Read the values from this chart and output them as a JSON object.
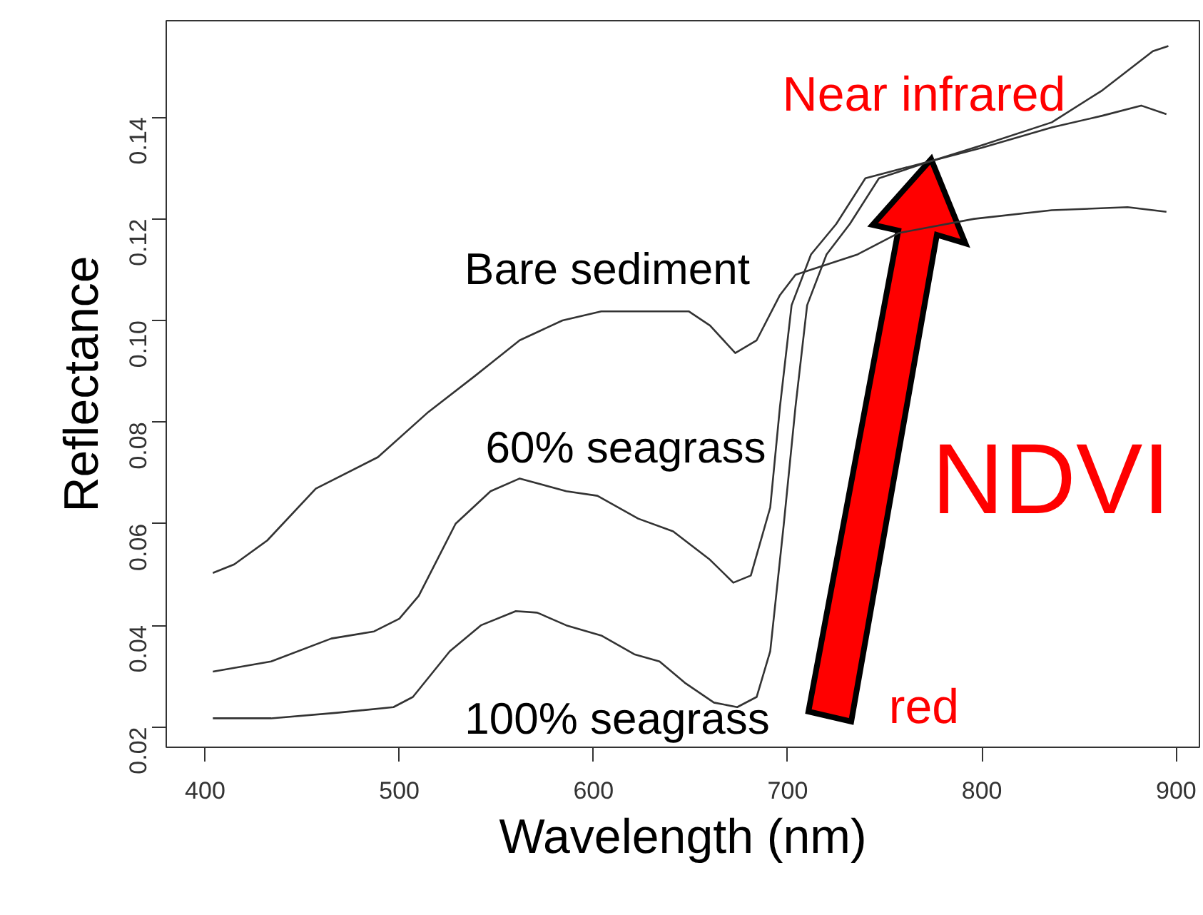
{
  "chart_data": {
    "type": "line",
    "xlabel": "Wavelength (nm)",
    "ylabel": "Reflectance",
    "xlim": [
      380,
      912
    ],
    "ylim": [
      0.016,
      0.159
    ],
    "xticks": [
      400,
      500,
      600,
      700,
      800,
      900
    ],
    "yticks": [
      {
        "value": 0.02,
        "label": "0.02"
      },
      {
        "value": 0.04,
        "label": "0.04"
      },
      {
        "value": 0.06,
        "label": "0.06"
      },
      {
        "value": 0.08,
        "label": "0.08"
      },
      {
        "value": 0.1,
        "label": "0.10"
      },
      {
        "value": 0.12,
        "label": "0.12"
      },
      {
        "value": 0.14,
        "label": "0.14"
      }
    ],
    "grid": false,
    "marker": "none",
    "line_style": "solid",
    "series": [
      {
        "name": "Bare sediment",
        "color": "#333333",
        "x": [
          404,
          415,
          432,
          457,
          489,
          515,
          539,
          562,
          584,
          604,
          649,
          660,
          673,
          684,
          696,
          704,
          736,
          757,
          796,
          836,
          875,
          895
        ],
        "values": [
          0.0503,
          0.052,
          0.0567,
          0.0669,
          0.0731,
          0.082,
          0.0891,
          0.0961,
          0.1,
          0.1018,
          0.1018,
          0.099,
          0.0936,
          0.0961,
          0.105,
          0.109,
          0.113,
          0.1172,
          0.12,
          0.1217,
          0.1223,
          0.1214
        ]
      },
      {
        "name": "60% seagrass",
        "color": "#333333",
        "x": [
          404,
          434,
          465,
          487,
          500,
          510,
          529,
          547,
          562,
          586,
          602,
          623,
          641,
          660,
          672,
          681,
          691,
          696,
          702,
          712,
          725,
          740,
          775,
          800,
          836,
          862,
          882,
          895
        ],
        "values": [
          0.0309,
          0.0329,
          0.0374,
          0.0388,
          0.0413,
          0.0458,
          0.06,
          0.0664,
          0.0689,
          0.0664,
          0.0655,
          0.061,
          0.0585,
          0.0529,
          0.0484,
          0.0498,
          0.0632,
          0.083,
          0.103,
          0.113,
          0.119,
          0.128,
          0.1315,
          0.134,
          0.138,
          0.1403,
          0.1423,
          0.1406
        ]
      },
      {
        "name": "100% seagrass",
        "color": "#333333",
        "x": [
          404,
          434,
          468,
          497,
          507,
          526,
          542,
          560,
          571,
          586,
          604,
          621,
          634,
          647,
          662,
          674,
          684,
          691,
          698,
          704,
          710,
          720,
          732,
          747,
          775,
          800,
          836,
          862,
          888,
          896
        ],
        "values": [
          0.0217,
          0.0217,
          0.0228,
          0.0239,
          0.0259,
          0.0349,
          0.04,
          0.0428,
          0.0425,
          0.04,
          0.038,
          0.0343,
          0.0329,
          0.0287,
          0.0248,
          0.0239,
          0.0259,
          0.0349,
          0.06,
          0.083,
          0.103,
          0.113,
          0.119,
          0.128,
          0.1315,
          0.1345,
          0.139,
          0.1453,
          0.153,
          0.154
        ]
      }
    ],
    "annotations": [
      "Near infrared",
      "NDVI",
      "red"
    ]
  }
}
